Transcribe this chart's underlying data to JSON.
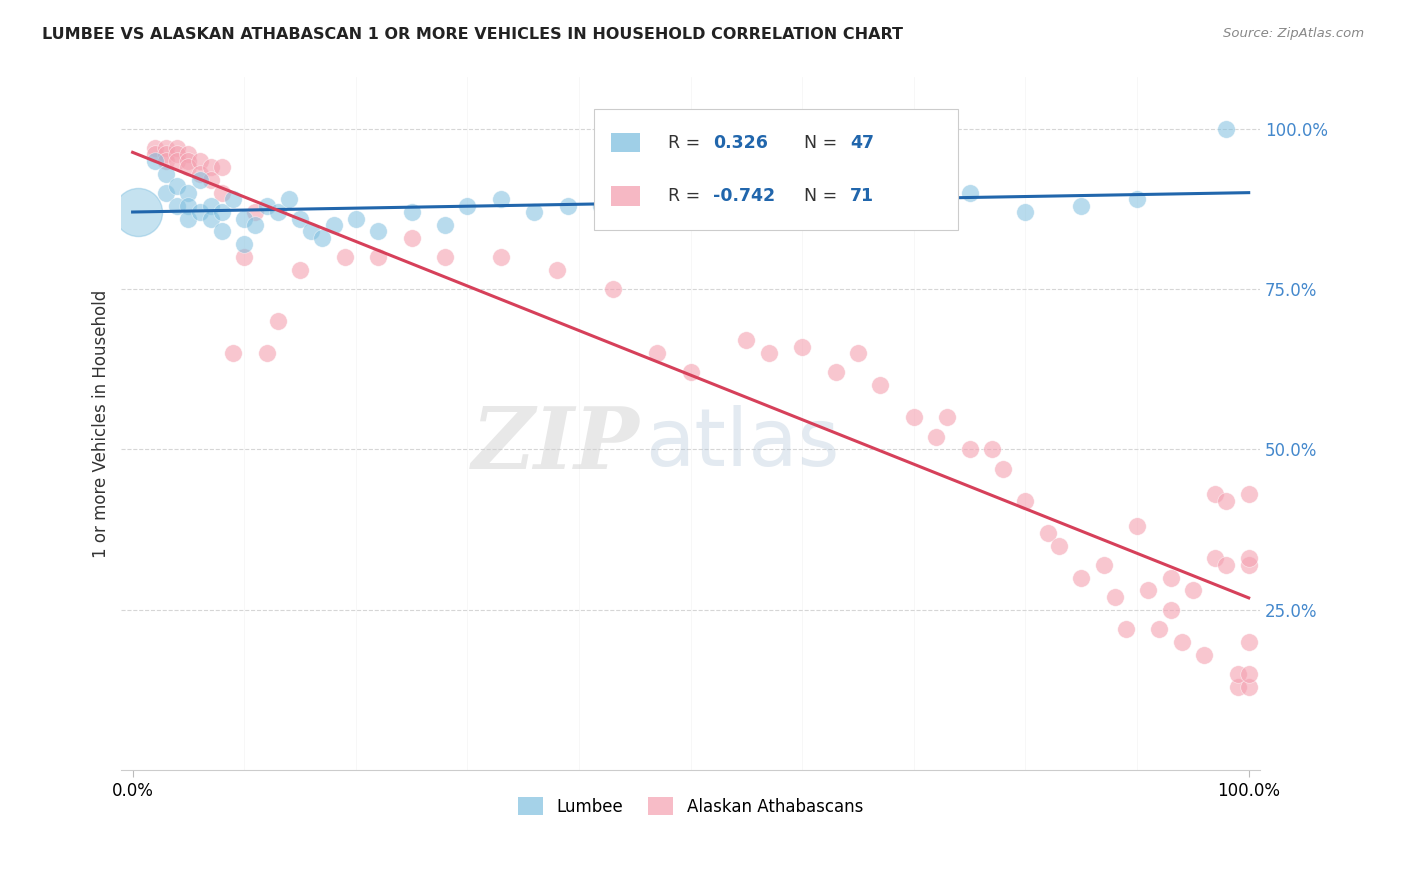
{
  "title": "LUMBEE VS ALASKAN ATHABASCAN 1 OR MORE VEHICLES IN HOUSEHOLD CORRELATION CHART",
  "source": "Source: ZipAtlas.com",
  "ylabel": "1 or more Vehicles in Household",
  "lumbee_color": "#7fbfdf",
  "athabascan_color": "#f4a0b0",
  "lumbee_line_color": "#2166ac",
  "athabascan_line_color": "#d6405a",
  "lumbee_R": 0.326,
  "lumbee_N": 47,
  "athabascan_R": -0.742,
  "athabascan_N": 71,
  "lumbee_x": [
    0.02,
    0.03,
    0.03,
    0.04,
    0.04,
    0.05,
    0.05,
    0.05,
    0.06,
    0.06,
    0.07,
    0.07,
    0.08,
    0.08,
    0.09,
    0.1,
    0.1,
    0.11,
    0.12,
    0.13,
    0.14,
    0.15,
    0.16,
    0.17,
    0.18,
    0.2,
    0.22,
    0.25,
    0.28,
    0.3,
    0.33,
    0.36,
    0.39,
    0.42,
    0.45,
    0.48,
    0.5,
    0.53,
    0.57,
    0.6,
    0.65,
    0.7,
    0.75,
    0.8,
    0.85,
    0.9,
    0.98
  ],
  "lumbee_y": [
    0.95,
    0.93,
    0.9,
    0.91,
    0.88,
    0.9,
    0.88,
    0.86,
    0.92,
    0.87,
    0.88,
    0.86,
    0.87,
    0.84,
    0.89,
    0.82,
    0.86,
    0.85,
    0.88,
    0.87,
    0.89,
    0.86,
    0.84,
    0.83,
    0.85,
    0.86,
    0.84,
    0.87,
    0.85,
    0.88,
    0.89,
    0.87,
    0.88,
    0.88,
    0.88,
    0.89,
    0.88,
    0.88,
    0.89,
    0.87,
    0.89,
    0.88,
    0.9,
    0.87,
    0.88,
    0.89,
    1.0
  ],
  "lumbee_large_x": [
    0.005
  ],
  "lumbee_large_y": [
    0.87
  ],
  "athabascan_x": [
    0.02,
    0.02,
    0.03,
    0.03,
    0.03,
    0.04,
    0.04,
    0.04,
    0.05,
    0.05,
    0.05,
    0.06,
    0.06,
    0.07,
    0.07,
    0.08,
    0.08,
    0.09,
    0.1,
    0.11,
    0.12,
    0.13,
    0.15,
    0.19,
    0.22,
    0.25,
    0.28,
    0.33,
    0.38,
    0.43,
    0.47,
    0.5,
    0.55,
    0.57,
    0.6,
    0.63,
    0.65,
    0.67,
    0.7,
    0.72,
    0.73,
    0.75,
    0.77,
    0.78,
    0.8,
    0.82,
    0.83,
    0.85,
    0.87,
    0.88,
    0.89,
    0.9,
    0.91,
    0.92,
    0.93,
    0.93,
    0.94,
    0.95,
    0.96,
    0.97,
    0.97,
    0.98,
    0.98,
    0.99,
    0.99,
    1.0,
    1.0,
    1.0,
    1.0,
    1.0,
    1.0
  ],
  "athabascan_y": [
    0.97,
    0.96,
    0.97,
    0.96,
    0.95,
    0.97,
    0.96,
    0.95,
    0.96,
    0.95,
    0.94,
    0.95,
    0.93,
    0.94,
    0.92,
    0.94,
    0.9,
    0.65,
    0.8,
    0.87,
    0.65,
    0.7,
    0.78,
    0.8,
    0.8,
    0.83,
    0.8,
    0.8,
    0.78,
    0.75,
    0.65,
    0.62,
    0.67,
    0.65,
    0.66,
    0.62,
    0.65,
    0.6,
    0.55,
    0.52,
    0.55,
    0.5,
    0.5,
    0.47,
    0.42,
    0.37,
    0.35,
    0.3,
    0.32,
    0.27,
    0.22,
    0.38,
    0.28,
    0.22,
    0.3,
    0.25,
    0.2,
    0.28,
    0.18,
    0.43,
    0.33,
    0.42,
    0.32,
    0.13,
    0.15,
    0.43,
    0.32,
    0.2,
    0.13,
    0.33,
    0.15
  ],
  "yticks": [
    0.25,
    0.5,
    0.75,
    1.0
  ],
  "ytick_labels": [
    "25.0%",
    "50.0%",
    "75.0%",
    "100.0%"
  ],
  "xtick_positions": [
    0.0,
    1.0
  ],
  "xtick_labels": [
    "0.0%",
    "100.0%"
  ],
  "watermark_zip": "ZIP",
  "watermark_atlas": "atlas",
  "legend_label_lumbee": "Lumbee",
  "legend_label_athabascan": "Alaskan Athabascans"
}
